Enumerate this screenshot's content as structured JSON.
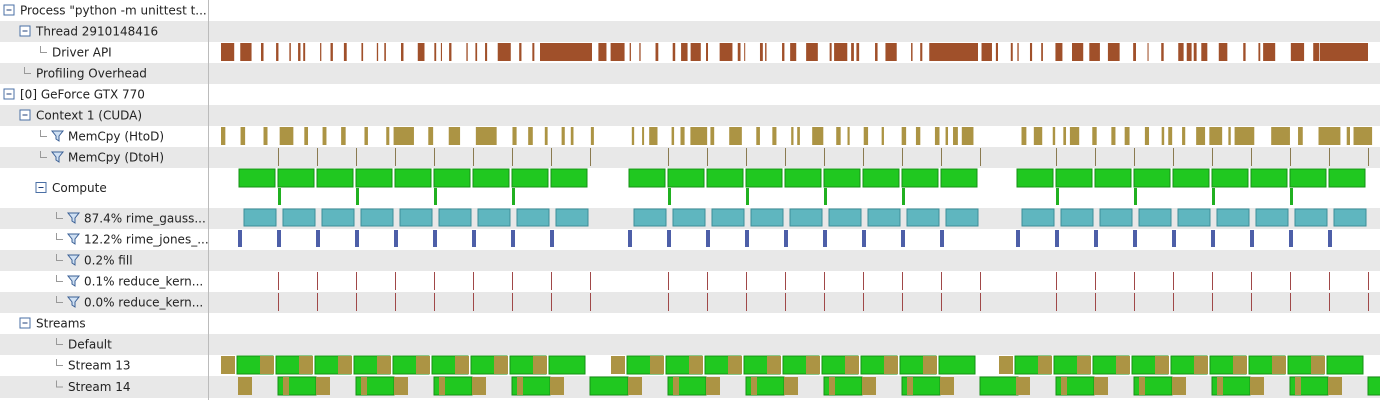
{
  "rows": [
    {
      "label": "Process \"python -m unittest t..."
    },
    {
      "label": "Thread 2910148416"
    },
    {
      "label": "Driver API"
    },
    {
      "label": "Profiling Overhead"
    },
    {
      "label": "[0] GeForce GTX 770"
    },
    {
      "label": "Context 1 (CUDA)"
    },
    {
      "label": "MemCpy (HtoD)"
    },
    {
      "label": "MemCpy (DtoH)"
    },
    {
      "label": "Compute"
    },
    {
      "label": "87.4% rime_gauss..."
    },
    {
      "label": "12.2% rime_jones_..."
    },
    {
      "label": "0.2% fill"
    },
    {
      "label": "0.1% reduce_kern..."
    },
    {
      "label": "0.0% reduce_kern..."
    },
    {
      "label": "Streams"
    },
    {
      "label": "Default"
    },
    {
      "label": "Stream 13"
    },
    {
      "label": "Stream 14"
    }
  ]
}
